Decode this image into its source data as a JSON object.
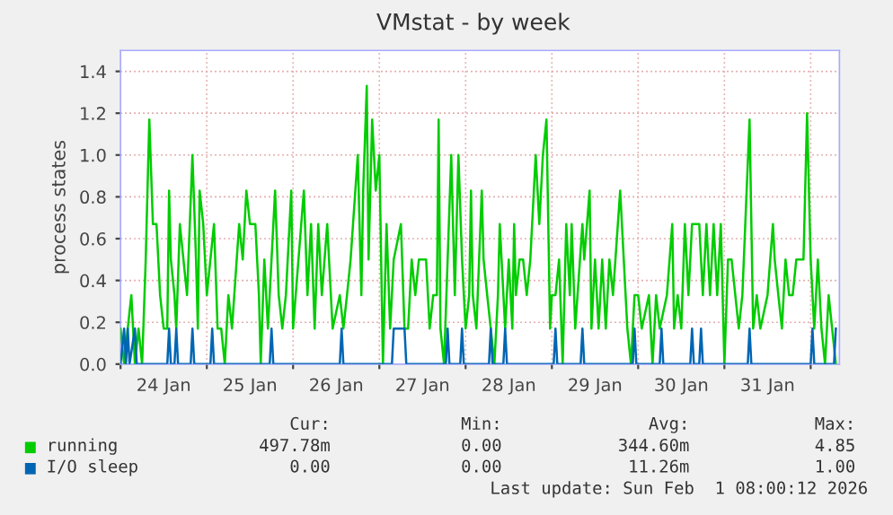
{
  "chart_data": {
    "type": "line",
    "title": "VMstat - by week",
    "ylabel": "process states",
    "xlim": [
      "2026-01-24T00:00",
      "2026-02-01T08:00"
    ],
    "xticks": [
      {
        "value": "2026-01-24T00:00",
        "label": null
      },
      {
        "value": "2026-01-24T12:00",
        "label": "24 Jan"
      },
      {
        "value": "2026-01-25T00:00",
        "label": null
      },
      {
        "value": "2026-01-25T12:00",
        "label": "25 Jan"
      },
      {
        "value": "2026-01-26T00:00",
        "label": null
      },
      {
        "value": "2026-01-26T12:00",
        "label": "26 Jan"
      },
      {
        "value": "2026-01-27T00:00",
        "label": null
      },
      {
        "value": "2026-01-27T12:00",
        "label": "27 Jan"
      },
      {
        "value": "2026-01-28T00:00",
        "label": null
      },
      {
        "value": "2026-01-28T12:00",
        "label": "28 Jan"
      },
      {
        "value": "2026-01-29T00:00",
        "label": null
      },
      {
        "value": "2026-01-29T12:00",
        "label": "29 Jan"
      },
      {
        "value": "2026-01-30T00:00",
        "label": null
      },
      {
        "value": "2026-01-30T12:00",
        "label": "30 Jan"
      },
      {
        "value": "2026-01-31T00:00",
        "label": null
      },
      {
        "value": "2026-01-31T12:00",
        "label": "31 Jan"
      },
      {
        "value": "2026-02-01T00:00",
        "label": null
      }
    ],
    "ylim": [
      0,
      1.5
    ],
    "yticks": [
      {
        "value": 0,
        "label": "0.0"
      },
      {
        "value": 0.2,
        "label": "0.2"
      },
      {
        "value": 0.4,
        "label": "0.4"
      },
      {
        "value": 0.6,
        "label": "0.6"
      },
      {
        "value": 0.8,
        "label": "0.8"
      },
      {
        "value": 1.0,
        "label": "1.0"
      },
      {
        "value": 1.2,
        "label": "1.2"
      },
      {
        "value": 1.4,
        "label": "1.4"
      }
    ],
    "grid": true,
    "legend": "bottom",
    "line_style": "solid",
    "marker": "none",
    "annotations": [
      "Cur:",
      "Min:",
      "Avg:",
      "Max:",
      "497.78m",
      "0.00",
      "344.60m",
      "4.85",
      "0.00",
      "0.00",
      "11.26m",
      "1.00",
      "Last update: Sun Feb  1 08:00:12 2026"
    ],
    "series": [
      {
        "name": "running",
        "color": "#00cc00",
        "x": [
          "2026-01-24T00:00",
          "2026-01-24T01:00",
          "2026-01-24T02:00",
          "2026-01-24T03:00",
          "2026-01-24T04:00",
          "2026-01-24T05:00",
          "2026-01-24T06:00",
          "2026-01-24T07:00",
          "2026-01-24T08:00",
          "2026-01-24T09:00",
          "2026-01-24T10:00",
          "2026-01-24T11:00",
          "2026-01-24T12:00",
          "2026-01-24T13:00",
          "2026-01-24T13:30",
          "2026-01-24T14:00",
          "2026-01-24T15:00",
          "2026-01-24T15:30",
          "2026-01-24T16:30",
          "2026-01-24T17:30",
          "2026-01-24T18:30",
          "2026-01-24T20:00",
          "2026-01-24T21:00",
          "2026-01-24T21:30",
          "2026-01-24T22:00",
          "2026-01-24T23:00",
          "2026-01-25T00:00",
          "2026-01-25T02:00",
          "2026-01-25T03:00",
          "2026-01-25T04:00",
          "2026-01-25T05:00",
          "2026-01-25T06:00",
          "2026-01-25T07:00",
          "2026-01-25T09:00",
          "2026-01-25T10:00",
          "2026-01-25T11:00",
          "2026-01-25T12:00",
          "2026-01-25T13:30",
          "2026-01-25T14:30",
          "2026-01-25T15:00",
          "2026-01-25T16:00",
          "2026-01-25T17:00",
          "2026-01-25T19:00",
          "2026-01-25T20:00",
          "2026-01-25T21:00",
          "2026-01-25T22:00",
          "2026-01-25T23:30",
          "2026-01-26T00:00",
          "2026-01-26T03:00",
          "2026-01-26T04:00",
          "2026-01-26T05:00",
          "2026-01-26T06:00",
          "2026-01-26T07:00",
          "2026-01-26T08:00",
          "2026-01-26T09:30",
          "2026-01-26T10:00",
          "2026-01-26T11:00",
          "2026-01-26T13:00",
          "2026-01-26T14:00",
          "2026-01-26T15:00",
          "2026-01-26T16:00",
          "2026-01-26T18:00",
          "2026-01-26T19:00",
          "2026-01-26T19:30",
          "2026-01-26T20:30",
          "2026-01-26T21:00",
          "2026-01-26T22:00",
          "2026-01-26T23:00",
          "2026-01-27T00:00",
          "2026-01-27T01:00",
          "2026-01-27T02:00",
          "2026-01-27T03:00",
          "2026-01-27T04:00",
          "2026-01-27T06:00",
          "2026-01-27T07:00",
          "2026-01-27T08:00",
          "2026-01-27T09:00",
          "2026-01-27T10:00",
          "2026-01-27T11:00",
          "2026-01-27T13:00",
          "2026-01-27T14:00",
          "2026-01-27T15:00",
          "2026-01-27T16:00",
          "2026-01-27T16:30",
          "2026-01-27T17:00",
          "2026-01-27T18:00",
          "2026-01-27T20:00",
          "2026-01-27T21:00",
          "2026-01-27T21:30",
          "2026-01-27T22:00",
          "2026-01-27T23:00",
          "2026-01-28T00:00",
          "2026-01-28T01:00",
          "2026-01-28T01:30",
          "2026-01-28T02:00",
          "2026-01-28T03:00",
          "2026-01-28T04:30",
          "2026-01-28T05:00",
          "2026-01-28T06:00",
          "2026-01-28T07:00",
          "2026-01-28T08:00",
          "2026-01-28T09:00",
          "2026-01-28T09:30",
          "2026-01-28T11:00",
          "2026-01-28T12:00",
          "2026-01-28T13:00",
          "2026-01-28T13:30",
          "2026-01-28T14:00",
          "2026-01-28T15:00",
          "2026-01-28T16:00",
          "2026-01-28T17:00",
          "2026-01-28T18:00",
          "2026-01-28T19:30",
          "2026-01-28T20:30",
          "2026-01-28T21:30",
          "2026-01-28T22:30",
          "2026-01-28T23:30",
          "2026-01-29T00:00",
          "2026-01-29T01:00",
          "2026-01-29T02:00",
          "2026-01-29T03:00",
          "2026-01-29T04:00",
          "2026-01-29T05:00",
          "2026-01-29T05:30",
          "2026-01-29T06:30",
          "2026-01-29T08:30",
          "2026-01-29T09:00",
          "2026-01-29T10:30",
          "2026-01-29T11:00",
          "2026-01-29T12:00",
          "2026-01-29T13:00",
          "2026-01-29T14:00",
          "2026-01-29T15:00",
          "2026-01-29T16:00",
          "2026-01-29T17:00",
          "2026-01-29T19:00",
          "2026-01-29T20:00",
          "2026-01-29T21:00",
          "2026-01-29T22:00",
          "2026-01-29T23:00",
          "2026-01-30T00:00",
          "2026-01-30T01:00",
          "2026-01-30T03:00",
          "2026-01-30T04:00",
          "2026-01-30T05:00",
          "2026-01-30T06:00",
          "2026-01-30T08:00",
          "2026-01-30T09:30",
          "2026-01-30T10:00",
          "2026-01-30T11:00",
          "2026-01-30T12:00",
          "2026-01-30T13:00",
          "2026-01-30T14:00",
          "2026-01-30T15:00",
          "2026-01-30T17:00",
          "2026-01-30T18:00",
          "2026-01-30T19:00",
          "2026-01-30T20:00",
          "2026-01-30T21:00",
          "2026-01-30T22:00",
          "2026-01-30T23:00",
          "2026-01-31T00:00",
          "2026-01-31T01:00",
          "2026-01-31T02:00",
          "2026-01-31T04:00",
          "2026-01-31T05:00",
          "2026-01-31T07:00",
          "2026-01-31T08:00",
          "2026-01-31T09:00",
          "2026-01-31T10:00",
          "2026-01-31T12:00",
          "2026-01-31T13:30",
          "2026-01-31T14:00",
          "2026-01-31T15:00",
          "2026-01-31T16:00",
          "2026-01-31T17:00",
          "2026-01-31T18:00",
          "2026-01-31T19:00",
          "2026-01-31T20:00",
          "2026-01-31T21:00",
          "2026-01-31T22:00",
          "2026-01-31T23:00",
          "2026-02-01T00:00",
          "2026-02-01T01:00",
          "2026-02-01T02:00",
          "2026-02-01T03:00",
          "2026-02-01T04:00",
          "2026-02-01T05:00",
          "2026-02-01T07:00"
        ],
        "values": [
          0.17,
          0,
          0.17,
          0.33,
          0,
          0.17,
          0,
          0.5,
          1.17,
          0.67,
          0.67,
          0.33,
          0.17,
          0.17,
          0.83,
          0.5,
          0.33,
          0.17,
          0.67,
          0.5,
          0.33,
          1.0,
          0.5,
          0.17,
          0.83,
          0.67,
          0.33,
          0.67,
          0.17,
          0.17,
          0,
          0.33,
          0.17,
          0.67,
          0.5,
          0.83,
          0.67,
          0.67,
          0.33,
          0,
          0.5,
          0.17,
          0.83,
          0.33,
          0.17,
          0.33,
          0.83,
          0.17,
          0.83,
          0.33,
          0.67,
          0.17,
          0.67,
          0.33,
          0.67,
          0.5,
          0.17,
          0.33,
          0.17,
          0.33,
          0.5,
          1.0,
          0.33,
          0.83,
          1.33,
          0.5,
          1.17,
          0.83,
          1.0,
          0,
          0.67,
          0.17,
          0.5,
          0.67,
          0.17,
          0.17,
          0.5,
          0.33,
          0.5,
          0.5,
          0.17,
          0.33,
          0.33,
          1.17,
          0.17,
          0,
          1.0,
          0.33,
          0.67,
          1.0,
          0.5,
          0.17,
          0.33,
          0.83,
          0.33,
          0.17,
          0.83,
          0.5,
          0.33,
          0.17,
          0,
          0.33,
          0.67,
          0.17,
          0.5,
          0.17,
          0.67,
          0.33,
          0.5,
          0.5,
          0.33,
          0.5,
          1.0,
          0.67,
          1.0,
          1.17,
          0.17,
          0.33,
          0.33,
          0.5,
          0,
          0.67,
          0.33,
          0.67,
          0.17,
          0.67,
          0.5,
          0.83,
          0.17,
          0.5,
          0.17,
          0.5,
          0.17,
          0.5,
          0.33,
          0.83,
          0.5,
          0.17,
          0,
          0.33,
          0.33,
          0.17,
          0.33,
          0,
          0.33,
          0.17,
          0.33,
          0.67,
          0.17,
          0.33,
          0.17,
          0.67,
          0.33,
          0.67,
          0.67,
          0.33,
          0.67,
          0.33,
          0.67,
          0.33,
          0.67,
          0,
          0.5,
          0.5,
          0.17,
          0.33,
          1.17,
          0.17,
          0.33,
          0.17,
          0.33,
          0.67,
          0.5,
          0.33,
          0.17,
          0.5,
          0.33,
          0.33,
          0.5,
          0.5,
          0.5,
          1.2,
          0.5,
          0.17,
          0.5,
          0.17,
          0,
          0.33,
          0
        ]
      },
      {
        "name": "I/O sleep",
        "color": "#0066b3",
        "x": [
          "2026-01-24T00:00",
          "2026-01-24T01:00",
          "2026-01-24T01:30",
          "2026-01-24T02:00",
          "2026-01-24T02:30",
          "2026-01-24T04:00",
          "2026-01-24T04:30",
          "2026-01-24T13:00",
          "2026-01-24T13:30",
          "2026-01-24T14:00",
          "2026-01-24T15:00",
          "2026-01-24T15:30",
          "2026-01-24T16:00",
          "2026-01-24T19:30",
          "2026-01-24T20:00",
          "2026-01-24T20:30",
          "2026-01-25T01:00",
          "2026-01-25T01:30",
          "2026-01-25T02:00",
          "2026-01-25T17:30",
          "2026-01-25T18:00",
          "2026-01-25T18:30",
          "2026-01-26T13:00",
          "2026-01-26T13:30",
          "2026-01-26T14:00",
          "2026-01-27T03:30",
          "2026-01-27T04:00",
          "2026-01-27T05:00",
          "2026-01-27T06:00",
          "2026-01-27T07:00",
          "2026-01-27T07:30",
          "2026-01-27T18:30",
          "2026-01-27T19:00",
          "2026-01-27T19:30",
          "2026-01-27T22:30",
          "2026-01-27T23:00",
          "2026-01-27T23:30",
          "2026-01-28T06:30",
          "2026-01-28T07:00",
          "2026-01-28T07:30",
          "2026-01-28T10:30",
          "2026-01-28T11:00",
          "2026-01-28T11:30",
          "2026-01-29T00:30",
          "2026-01-29T01:00",
          "2026-01-29T01:30",
          "2026-01-29T08:00",
          "2026-01-29T08:30",
          "2026-01-29T09:00",
          "2026-01-29T22:30",
          "2026-01-29T23:00",
          "2026-01-29T23:30",
          "2026-01-30T06:00",
          "2026-01-30T06:30",
          "2026-01-30T07:00",
          "2026-01-30T14:30",
          "2026-01-30T15:00",
          "2026-01-30T15:30",
          "2026-01-30T17:00",
          "2026-01-30T17:30",
          "2026-01-30T18:00",
          "2026-01-31T06:30",
          "2026-01-31T07:00",
          "2026-01-31T07:30",
          "2026-02-01T00:00",
          "2026-02-01T00:30",
          "2026-02-01T01:00",
          "2026-02-01T06:30",
          "2026-02-01T07:00"
        ],
        "values": [
          0,
          0.17,
          0,
          0.17,
          0,
          0.17,
          0,
          0,
          0.17,
          0,
          0,
          0.17,
          0,
          0,
          0.17,
          0,
          0,
          0.17,
          0,
          0,
          0.17,
          0,
          0,
          0.17,
          0,
          0,
          0.17,
          0.17,
          0.17,
          0.17,
          0,
          0,
          0.17,
          0,
          0,
          0.17,
          0,
          0,
          0.17,
          0,
          0,
          0.17,
          0,
          0,
          0.17,
          0,
          0,
          0.17,
          0,
          0,
          0.17,
          0,
          0,
          0.17,
          0,
          0,
          0.17,
          0,
          0,
          0.17,
          0,
          0,
          0.17,
          0,
          0,
          0.17,
          0,
          0,
          0.17
        ]
      }
    ]
  }
}
